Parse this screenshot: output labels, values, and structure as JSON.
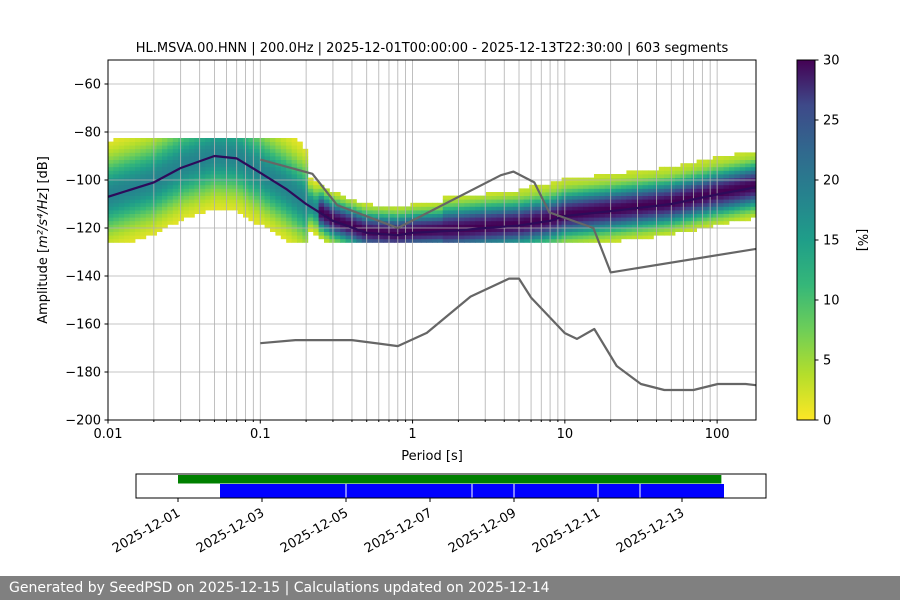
{
  "chart_data": {
    "title": "HL.MSVA.00.HNN | 200.0Hz | 2025-12-01T00:00:00 - 2025-12-13T22:30:00 | 603 segments",
    "type": "heatmap",
    "xlabel": "Period [s]",
    "x_scale": "log",
    "xlim": [
      0.01,
      180
    ],
    "x_ticks": [
      0.01,
      0.1,
      1,
      10,
      100
    ],
    "x_tick_labels": [
      "0.01",
      "0.1",
      "1",
      "10",
      "100"
    ],
    "ylabel_prefix": "Amplitude [",
    "ylabel_math": "m²/s⁴/Hz",
    "ylabel_suffix": "] [dB]",
    "ylim": [
      -200,
      -50
    ],
    "y_ticks": [
      -200,
      -180,
      -160,
      -140,
      -120,
      -100,
      -80,
      -60
    ],
    "y_tick_labels": [
      "−200",
      "−180",
      "−160",
      "−140",
      "−120",
      "−100",
      "−80",
      "−60"
    ],
    "grid": true,
    "colorbar": {
      "label": "[%]",
      "range": [
        0,
        30
      ],
      "ticks": [
        0,
        5,
        10,
        15,
        20,
        25,
        30
      ],
      "colormap": "viridis_r"
    },
    "mode_curve": {
      "name": "mode",
      "x": [
        0.01,
        0.02,
        0.03,
        0.05,
        0.07,
        0.1,
        0.15,
        0.2,
        0.3,
        0.5,
        0.8,
        1,
        2,
        3,
        5,
        8,
        10,
        20,
        50,
        100,
        180
      ],
      "y": [
        -107,
        -101,
        -95,
        -90,
        -91,
        -97,
        -104,
        -110,
        -117,
        -122,
        -123,
        -122,
        -121,
        -120,
        -119,
        -117,
        -115,
        -113,
        -110,
        -106,
        -103
      ]
    },
    "nhnm": {
      "x": [
        0.1,
        0.22,
        0.32,
        0.8,
        3.8,
        4.6,
        6.3,
        7.9,
        15.4,
        20,
        180
      ],
      "y": [
        -91.5,
        -97.4,
        -110.5,
        -120,
        -98,
        -96.5,
        -101,
        -113.5,
        -120,
        -138.5,
        -128.7
      ]
    },
    "nlnm": {
      "x": [
        0.1,
        0.17,
        0.4,
        0.8,
        1.24,
        2.4,
        4.3,
        5,
        6,
        10,
        12,
        15.6,
        21.9,
        31.6,
        45,
        70,
        101,
        154,
        180
      ],
      "y": [
        -168,
        -166.7,
        -166.7,
        -169.2,
        -163.7,
        -148.6,
        -141.1,
        -141.1,
        -149,
        -163.8,
        -166.2,
        -162.1,
        -177.5,
        -185,
        -187.5,
        -187.5,
        -185,
        -185,
        -185.5
      ]
    },
    "availability": {
      "x_range": [
        "2025-11-30",
        "2025-12-15"
      ],
      "tick_labels": [
        "2025-12-01",
        "2025-12-03",
        "2025-12-05",
        "2025-12-07",
        "2025-12-09",
        "2025-12-11",
        "2025-12-13"
      ],
      "green_bar": {
        "start": "2025-12-01",
        "end": "2025-12-13T22:30"
      },
      "blue_bar": {
        "start": "2025-12-02",
        "end": "2025-12-14",
        "gaps": [
          "2025-12-05",
          "2025-12-08",
          "2025-12-09",
          "2025-12-11",
          "2025-12-12"
        ]
      },
      "colors": {
        "green": "#008000",
        "blue": "#0000ff"
      }
    }
  },
  "footer": {
    "text": "Generated by SeedPSD on 2025-12-15 | Calculations updated on 2025-12-14"
  }
}
